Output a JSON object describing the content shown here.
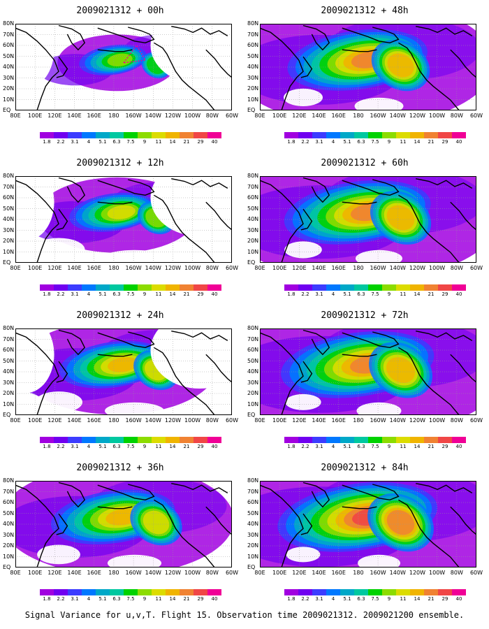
{
  "panels": [
    {
      "title": "2009021312 + 00h",
      "intensity": 0.3,
      "spread": 0.45
    },
    {
      "title": "2009021312 + 48h",
      "intensity": 0.65,
      "spread": 1.0
    },
    {
      "title": "2009021312 + 12h",
      "intensity": 0.45,
      "spread": 0.6
    },
    {
      "title": "2009021312 + 60h",
      "intensity": 0.7,
      "spread": 1.05
    },
    {
      "title": "2009021312 + 24h",
      "intensity": 0.55,
      "spread": 0.75
    },
    {
      "title": "2009021312 + 72h",
      "intensity": 0.78,
      "spread": 1.1
    },
    {
      "title": "2009021312 + 36h",
      "intensity": 0.6,
      "spread": 0.88
    },
    {
      "title": "2009021312 + 84h",
      "intensity": 0.85,
      "spread": 1.15
    }
  ],
  "lat_labels": [
    "80N",
    "70N",
    "60N",
    "50N",
    "40N",
    "30N",
    "20N",
    "10N",
    "EQ"
  ],
  "lon_labels": [
    "80E",
    "100E",
    "120E",
    "140E",
    "160E",
    "180",
    "160W",
    "140W",
    "120W",
    "100W",
    "80W",
    "60W"
  ],
  "colorbar": {
    "labels": [
      "1.8",
      "2.2",
      "3.1",
      "4",
      "5.1",
      "6.3",
      "7.5",
      "9",
      "11",
      "14",
      "21",
      "29",
      "40"
    ],
    "colors": [
      "#a100e0",
      "#7000f0",
      "#3c3cff",
      "#0078ff",
      "#00a8c8",
      "#00c8a0",
      "#00d200",
      "#8cdc00",
      "#dcdc00",
      "#f0b400",
      "#f08232",
      "#f04646",
      "#f00096"
    ]
  },
  "caption": "Signal Variance for u,v,T. Flight 15. Observation time 2009021312. 2009021200 ensemble."
}
